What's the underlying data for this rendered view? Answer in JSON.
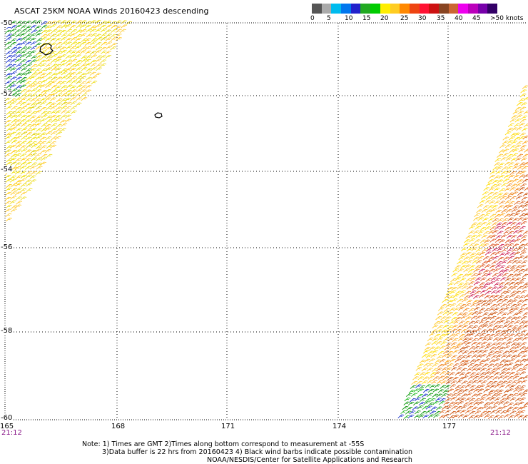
{
  "title": "ASCAT 25KM NOAA Winds 20160423 descending",
  "colorbar": {
    "colors": [
      "#555555",
      "#aaaaaa",
      "#00bbee",
      "#0077ee",
      "#2222cc",
      "#22aa22",
      "#00cc00",
      "#ffee00",
      "#ffcc22",
      "#ff8800",
      "#ee4411",
      "#ff1133",
      "#cc1111",
      "#884422",
      "#cc6633",
      "#ee00ee",
      "#bb00bb",
      "#7700aa",
      "#330066"
    ],
    "labels": [
      "0",
      "5",
      "10",
      "15",
      "20",
      "25",
      "30",
      "35",
      "40",
      "45",
      ">50 knots"
    ]
  },
  "map": {
    "lat_labels": [
      "-50",
      "-52",
      "-54",
      "-56",
      "-58",
      "-60"
    ],
    "lon_labels": [
      "165",
      "168",
      "171",
      "174",
      "177"
    ],
    "time_left": "21:12",
    "time_right": "21:12"
  },
  "notes": {
    "line1": "Note: 1) Times are GMT 2)Times along bottom correspond to measurement at -55S",
    "line2": "3)Data buffer is 22 hrs from 20160423 4) Black wind barbs indicate possible contamination",
    "line3": "NOAA/NESDIS/Center for Satellite Applications and Research"
  }
}
